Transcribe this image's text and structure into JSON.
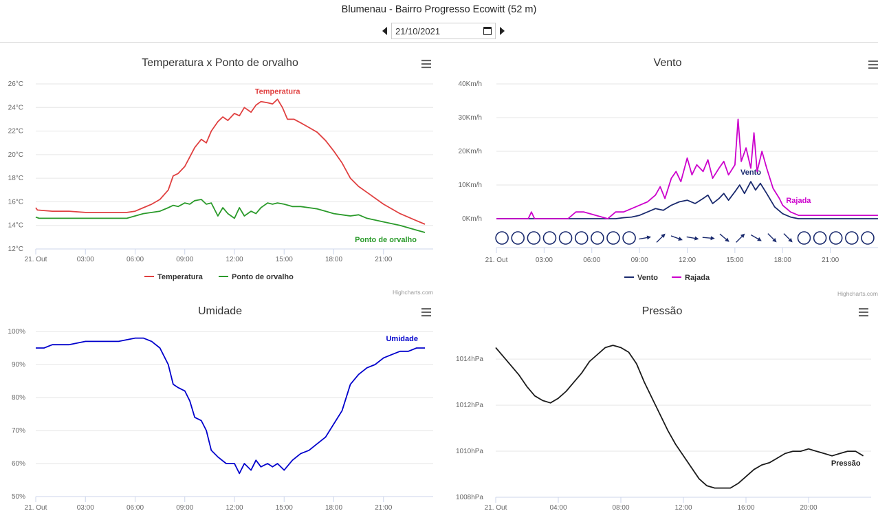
{
  "page": {
    "title": "Blumenau - Bairro Progresso Ecowitt (52 m)",
    "date": "21/10/2021"
  },
  "colors": {
    "temperatura": "#e04040",
    "orvalho": "#2a9a2a",
    "vento": "#1a2a6e",
    "rajada": "#cc00cc",
    "umidade": "#0000cc",
    "pressao": "#1a1a1a"
  },
  "icons": {
    "prev": "caret-left-icon",
    "next": "caret-right-icon",
    "calendar": "calendar-icon",
    "menu": "hamburger-menu-icon",
    "direction": "arrow-icon",
    "calm": "circle-icon"
  },
  "chart_data": [
    {
      "type": "line",
      "title": "Temperatura x Ponto de orvalho",
      "credits": "Highcharts.com",
      "xlabels": [
        "21. Out",
        "03:00",
        "06:00",
        "09:00",
        "12:00",
        "15:00",
        "18:00",
        "21:00"
      ],
      "ylabels": [
        "12°C",
        "14°C",
        "16°C",
        "18°C",
        "20°C",
        "22°C",
        "24°C",
        "26°C"
      ],
      "ylim": [
        12,
        26
      ],
      "legend": [
        "Temperatura",
        "Ponto de orvalho"
      ],
      "series": [
        {
          "name": "Temperatura",
          "label": "Temperatura",
          "x": [
            0,
            0.1,
            1,
            2,
            3,
            4,
            5,
            5.5,
            6,
            6.5,
            7,
            7.5,
            8,
            8.3,
            8.6,
            9,
            9.3,
            9.6,
            10,
            10.3,
            10.6,
            11,
            11.3,
            11.6,
            12,
            12.3,
            12.6,
            13,
            13.3,
            13.6,
            14,
            14.3,
            14.6,
            14.9,
            15.2,
            15.6,
            16,
            16.5,
            17,
            17.5,
            18,
            18.5,
            19,
            19.5,
            20,
            21,
            22,
            23,
            23.5
          ],
          "y": [
            15.5,
            15.3,
            15.2,
            15.2,
            15.1,
            15.1,
            15.1,
            15.1,
            15.2,
            15.5,
            15.8,
            16.2,
            17.0,
            18.2,
            18.4,
            19.0,
            19.8,
            20.6,
            21.3,
            21.0,
            22.0,
            22.8,
            23.2,
            22.9,
            23.5,
            23.3,
            24.0,
            23.6,
            24.2,
            24.5,
            24.4,
            24.3,
            24.7,
            24.0,
            23.0,
            23.0,
            22.7,
            22.3,
            21.9,
            21.2,
            20.3,
            19.3,
            18.0,
            17.3,
            16.8,
            15.8,
            15.0,
            14.4,
            14.1
          ]
        },
        {
          "name": "Ponto de orvalho",
          "label": "Ponto de orvalho",
          "x": [
            0,
            0.2,
            1,
            2,
            3,
            4,
            5,
            5.5,
            6,
            6.5,
            7,
            7.5,
            8,
            8.3,
            8.6,
            9,
            9.3,
            9.6,
            10,
            10.3,
            10.6,
            11,
            11.3,
            11.6,
            12,
            12.3,
            12.6,
            13,
            13.3,
            13.6,
            14,
            14.3,
            14.6,
            15,
            15.5,
            16,
            16.5,
            17,
            17.5,
            18,
            18.5,
            19,
            19.5,
            20,
            21,
            22,
            23,
            23.5
          ],
          "y": [
            14.7,
            14.6,
            14.6,
            14.6,
            14.6,
            14.6,
            14.6,
            14.6,
            14.8,
            15.0,
            15.1,
            15.2,
            15.5,
            15.7,
            15.6,
            15.9,
            15.8,
            16.1,
            16.2,
            15.8,
            15.9,
            14.8,
            15.5,
            15.0,
            14.6,
            15.5,
            14.8,
            15.2,
            15.0,
            15.5,
            15.9,
            15.8,
            15.9,
            15.8,
            15.6,
            15.6,
            15.5,
            15.4,
            15.2,
            15.0,
            14.9,
            14.8,
            14.9,
            14.6,
            14.3,
            14.0,
            13.6,
            13.4
          ]
        }
      ]
    },
    {
      "type": "line",
      "title": "Vento",
      "credits": "Highcharts.com",
      "xlabels": [
        "21. Out",
        "03:00",
        "06:00",
        "09:00",
        "12:00",
        "15:00",
        "18:00",
        "21:00"
      ],
      "ylabels": [
        "0Km/h",
        "10Km/h",
        "20Km/h",
        "30Km/h",
        "40Km/h"
      ],
      "ylim": [
        0,
        40
      ],
      "legend": [
        "Vento",
        "Rajada"
      ],
      "series": [
        {
          "name": "Vento",
          "label": "Vento",
          "x": [
            0,
            7.5,
            8,
            8.5,
            9,
            9.5,
            10,
            10.5,
            11,
            11.5,
            12,
            12.5,
            13,
            13.3,
            13.6,
            14,
            14.3,
            14.6,
            15,
            15.3,
            15.6,
            16,
            16.3,
            16.6,
            17,
            17.5,
            18,
            18.5,
            19,
            24
          ],
          "y": [
            0,
            0,
            0.3,
            0.5,
            1,
            2,
            3,
            2.5,
            4,
            5,
            5.5,
            4.5,
            6,
            7,
            4.5,
            6,
            7.5,
            5.5,
            8,
            10,
            7.5,
            11,
            8.5,
            10.5,
            7.5,
            3.5,
            1.5,
            0.5,
            0,
            0
          ]
        },
        {
          "name": "Rajada",
          "label": "Rajada",
          "x": [
            0,
            2,
            2.2,
            2.4,
            4.5,
            5,
            5.5,
            7,
            7.5,
            8,
            8.5,
            9,
            9.5,
            10,
            10.3,
            10.6,
            11,
            11.3,
            11.6,
            12,
            12.3,
            12.6,
            13,
            13.3,
            13.6,
            14,
            14.3,
            14.6,
            15,
            15.2,
            15.4,
            15.7,
            16,
            16.2,
            16.4,
            16.7,
            17,
            17.4,
            17.8,
            18,
            18.5,
            19,
            20,
            24
          ],
          "y": [
            0,
            0,
            2,
            0,
            0,
            2,
            2,
            0,
            2,
            2,
            3,
            4,
            5,
            7,
            9.5,
            6,
            12,
            14,
            11,
            18,
            13,
            16,
            14,
            17.5,
            12,
            15,
            17,
            13,
            16,
            29.5,
            17,
            21,
            15,
            25.5,
            14,
            20,
            15,
            9,
            6,
            4,
            2,
            1,
            1,
            1
          ]
        }
      ],
      "direction": [
        {
          "time": "00:00",
          "dir": "calma"
        },
        {
          "time": "01:00",
          "dir": "calma"
        },
        {
          "time": "02:00",
          "dir": "calma"
        },
        {
          "time": "03:00",
          "dir": "calma"
        },
        {
          "time": "04:00",
          "dir": "calma"
        },
        {
          "time": "05:00",
          "dir": "calma"
        },
        {
          "time": "06:00",
          "dir": "calma"
        },
        {
          "time": "07:00",
          "dir": "calma"
        },
        {
          "time": "08:00",
          "dir": "calma"
        },
        {
          "time": "09:00",
          "dir": 80
        },
        {
          "time": "10:00",
          "dir": 45
        },
        {
          "time": "11:00",
          "dir": 110
        },
        {
          "time": "12:00",
          "dir": 100
        },
        {
          "time": "13:00",
          "dir": 95
        },
        {
          "time": "14:00",
          "dir": 130
        },
        {
          "time": "15:00",
          "dir": 45
        },
        {
          "time": "16:00",
          "dir": 120
        },
        {
          "time": "17:00",
          "dir": 135
        },
        {
          "time": "18:00",
          "dir": 135
        },
        {
          "time": "19:00",
          "dir": "calma"
        },
        {
          "time": "20:00",
          "dir": "calma"
        },
        {
          "time": "21:00",
          "dir": "calma"
        },
        {
          "time": "22:00",
          "dir": "calma"
        },
        {
          "time": "23:00",
          "dir": "calma"
        }
      ]
    },
    {
      "type": "line",
      "title": "Umidade",
      "xlabels": [
        "21. Out",
        "03:00",
        "06:00",
        "09:00",
        "12:00",
        "15:00",
        "18:00",
        "21:00"
      ],
      "ylabels": [
        "50%",
        "60%",
        "70%",
        "80%",
        "90%",
        "100%"
      ],
      "ylim": [
        50,
        100
      ],
      "series": [
        {
          "name": "Umidade",
          "label": "Umidade",
          "x": [
            0,
            0.5,
            1,
            2,
            3,
            4,
            5,
            5.5,
            6,
            6.5,
            7,
            7.5,
            8,
            8.3,
            8.6,
            9,
            9.3,
            9.6,
            10,
            10.3,
            10.6,
            11,
            11.5,
            12,
            12.3,
            12.6,
            13,
            13.3,
            13.6,
            14,
            14.3,
            14.6,
            15,
            15.5,
            16,
            16.5,
            17,
            17.5,
            18,
            18.5,
            19,
            19.5,
            20,
            20.5,
            21,
            21.5,
            22,
            22.5,
            23,
            23.5
          ],
          "y": [
            95,
            95,
            96,
            96,
            97,
            97,
            97,
            97.5,
            98,
            98,
            97,
            95,
            90,
            84,
            83,
            82,
            79,
            74,
            73,
            70,
            64,
            62,
            60,
            60,
            57,
            60,
            58,
            61,
            59,
            60,
            59,
            60,
            58,
            61,
            63,
            64,
            66,
            68,
            72,
            76,
            84,
            87,
            89,
            90,
            92,
            93,
            94,
            94,
            95,
            95
          ]
        }
      ]
    },
    {
      "type": "line",
      "title": "Pressão",
      "xlabels": [
        "21. Out",
        "04:00",
        "08:00",
        "12:00",
        "16:00",
        "20:00"
      ],
      "ylabels": [
        "1008hPa",
        "1010hPa",
        "1012hPa",
        "1014hPa"
      ],
      "ylim": [
        1008,
        1015.2
      ],
      "series": [
        {
          "name": "Pressão",
          "label": "Pressão",
          "x": [
            0,
            0.5,
            1,
            1.5,
            2,
            2.5,
            3,
            3.5,
            4,
            4.5,
            5,
            5.5,
            6,
            6.5,
            7,
            7.5,
            8,
            8.5,
            9,
            9.5,
            10,
            10.5,
            11,
            11.5,
            12,
            12.5,
            13,
            13.5,
            14,
            14.5,
            15,
            15.5,
            16,
            16.5,
            17,
            17.5,
            18,
            18.5,
            19,
            19.5,
            20,
            20.5,
            21,
            21.5,
            22,
            22.5,
            23,
            23.5
          ],
          "y": [
            1014.5,
            1014.1,
            1013.7,
            1013.3,
            1012.8,
            1012.4,
            1012.2,
            1012.1,
            1012.3,
            1012.6,
            1013.0,
            1013.4,
            1013.9,
            1014.2,
            1014.5,
            1014.6,
            1014.5,
            1014.3,
            1013.8,
            1013.0,
            1012.3,
            1011.6,
            1010.9,
            1010.3,
            1009.8,
            1009.3,
            1008.8,
            1008.5,
            1008.4,
            1008.4,
            1008.4,
            1008.6,
            1008.9,
            1009.2,
            1009.4,
            1009.5,
            1009.7,
            1009.9,
            1010.0,
            1010.0,
            1010.1,
            1010.0,
            1009.9,
            1009.8,
            1009.9,
            1010.0,
            1010.0,
            1009.8
          ]
        }
      ]
    }
  ]
}
